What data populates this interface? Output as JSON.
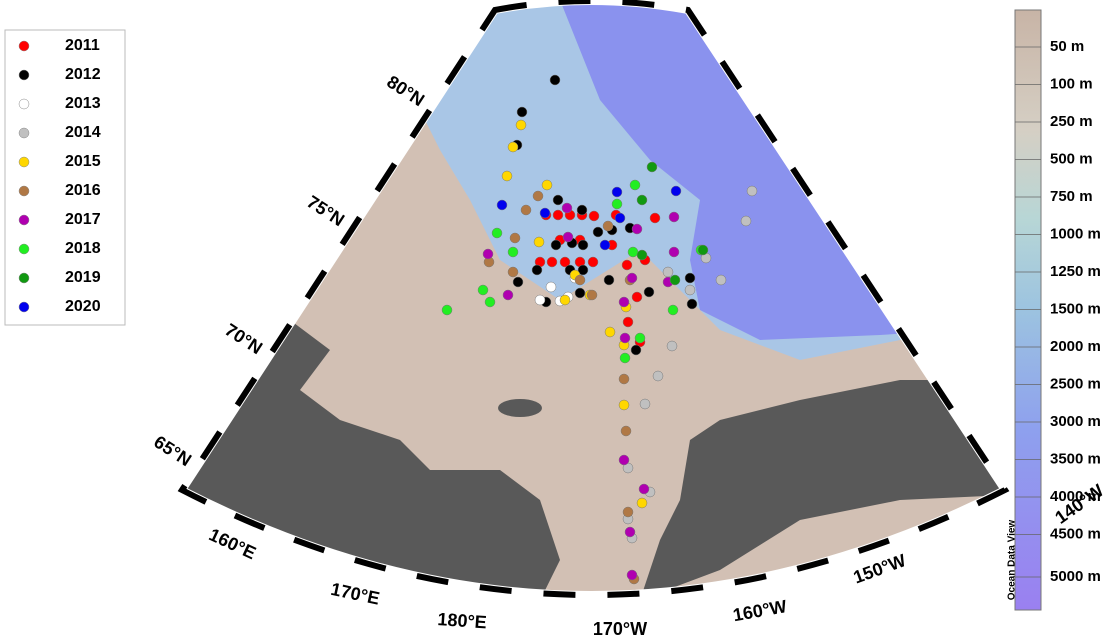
{
  "legend": {
    "items": [
      {
        "label": "2011",
        "color": "#ff0000"
      },
      {
        "label": "2012",
        "color": "#000000"
      },
      {
        "label": "2013",
        "color": "#ffffff"
      },
      {
        "label": "2014",
        "color": "#c0c0c0"
      },
      {
        "label": "2015",
        "color": "#ffd700"
      },
      {
        "label": "2016",
        "color": "#b07845"
      },
      {
        "label": "2017",
        "color": "#b000b0"
      },
      {
        "label": "2018",
        "color": "#22ee22"
      },
      {
        "label": "2019",
        "color": "#119911"
      },
      {
        "label": "2020",
        "color": "#0000ee"
      }
    ]
  },
  "latitude_labels": [
    "80°N",
    "75°N",
    "70°N",
    "65°N"
  ],
  "longitude_labels": [
    "160°E",
    "170°E",
    "180°E",
    "170°W",
    "160°W",
    "150°W",
    "140°W"
  ],
  "colorbar": {
    "labels": [
      "50 m",
      "100 m",
      "250 m",
      "500 m",
      "750 m",
      "1000 m",
      "1250 m",
      "1500 m",
      "2000 m",
      "2500 m",
      "3000 m",
      "3500 m",
      "4000 m",
      "4500 m",
      "5000 m"
    ],
    "credit": "Ocean Data View"
  }
}
